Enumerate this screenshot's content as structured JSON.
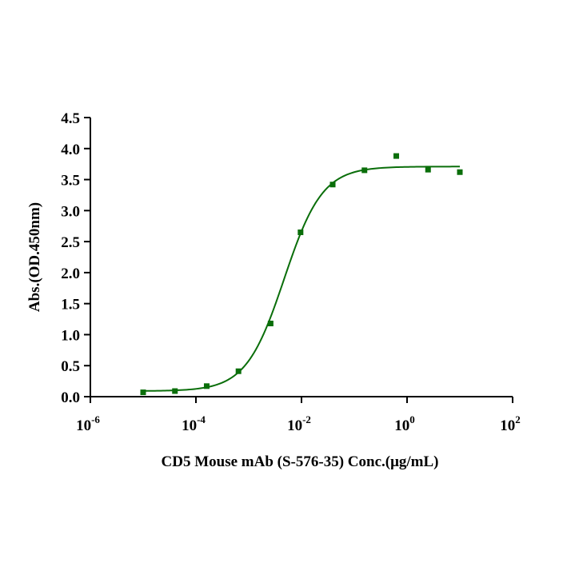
{
  "chart_data": {
    "type": "scatter",
    "xscale": "log",
    "xlim": [
      1e-06,
      100
    ],
    "ylim": [
      0,
      4.5
    ],
    "xlabel": "CD5 Mouse mAb (S-576-35) Conc.(μg/mL)",
    "ylabel": "Abs.(OD.450nm)",
    "x_ticks": [
      {
        "value": 1e-06,
        "base": "10",
        "exp": "-6"
      },
      {
        "value": 0.0001,
        "base": "10",
        "exp": "-4"
      },
      {
        "value": 0.01,
        "base": "10",
        "exp": "-2"
      },
      {
        "value": 1,
        "base": "10",
        "exp": "0"
      },
      {
        "value": 100,
        "base": "10",
        "exp": "2"
      }
    ],
    "y_ticks": [
      "0.0",
      "0.5",
      "1.0",
      "1.5",
      "2.0",
      "2.5",
      "3.0",
      "3.5",
      "4.0",
      "4.5"
    ],
    "series": [
      {
        "color": "#0a6e0a",
        "points": [
          {
            "x": 1e-05,
            "y": 0.07
          },
          {
            "x": 4e-05,
            "y": 0.09
          },
          {
            "x": 0.00016,
            "y": 0.17
          },
          {
            "x": 0.00064,
            "y": 0.41
          },
          {
            "x": 0.0026,
            "y": 1.18
          },
          {
            "x": 0.0096,
            "y": 2.65
          },
          {
            "x": 0.039,
            "y": 3.42
          },
          {
            "x": 0.156,
            "y": 3.65
          },
          {
            "x": 0.625,
            "y": 3.88
          },
          {
            "x": 2.5,
            "y": 3.66
          },
          {
            "x": 10,
            "y": 3.62
          }
        ],
        "fit": {
          "model": "4PL",
          "bottom": 0.09,
          "top": 3.71,
          "ec50": 0.0047,
          "hill": 1.2,
          "x_range": [
            1e-05,
            10
          ]
        }
      }
    ],
    "grid": false,
    "legend": "none"
  }
}
